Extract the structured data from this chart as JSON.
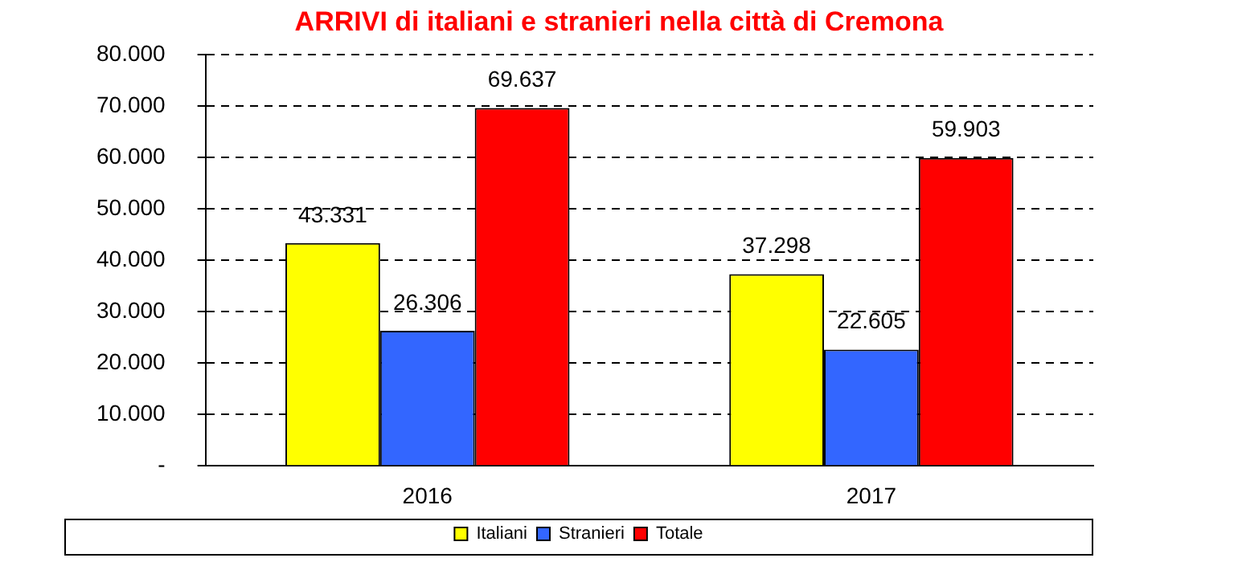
{
  "chart_data": {
    "type": "bar",
    "title": "ARRIVI di italiani e stranieri nella città di Cremona",
    "categories": [
      "2016",
      "2017"
    ],
    "series": [
      {
        "name": "Italiani",
        "color": "#ffff00",
        "values": [
          43331,
          37298
        ],
        "value_labels": [
          "43.331",
          "37.298"
        ]
      },
      {
        "name": "Stranieri",
        "color": "#3366ff",
        "values": [
          26306,
          22605
        ],
        "value_labels": [
          "26.306",
          "22.605"
        ]
      },
      {
        "name": "Totale",
        "color": "#ff0000",
        "values": [
          69637,
          59903
        ],
        "value_labels": [
          "69.637",
          "59.903"
        ]
      }
    ],
    "ylim": [
      0,
      80000
    ],
    "yticks": [
      {
        "value": 0,
        "label": "-"
      },
      {
        "value": 10000,
        "label": "10.000"
      },
      {
        "value": 20000,
        "label": "20.000"
      },
      {
        "value": 30000,
        "label": "30.000"
      },
      {
        "value": 40000,
        "label": "40.000"
      },
      {
        "value": 50000,
        "label": "50.000"
      },
      {
        "value": 60000,
        "label": "60.000"
      },
      {
        "value": 70000,
        "label": "70.000"
      },
      {
        "value": 80000,
        "label": "80.000"
      }
    ],
    "grid": "y",
    "legend": "bottom"
  }
}
